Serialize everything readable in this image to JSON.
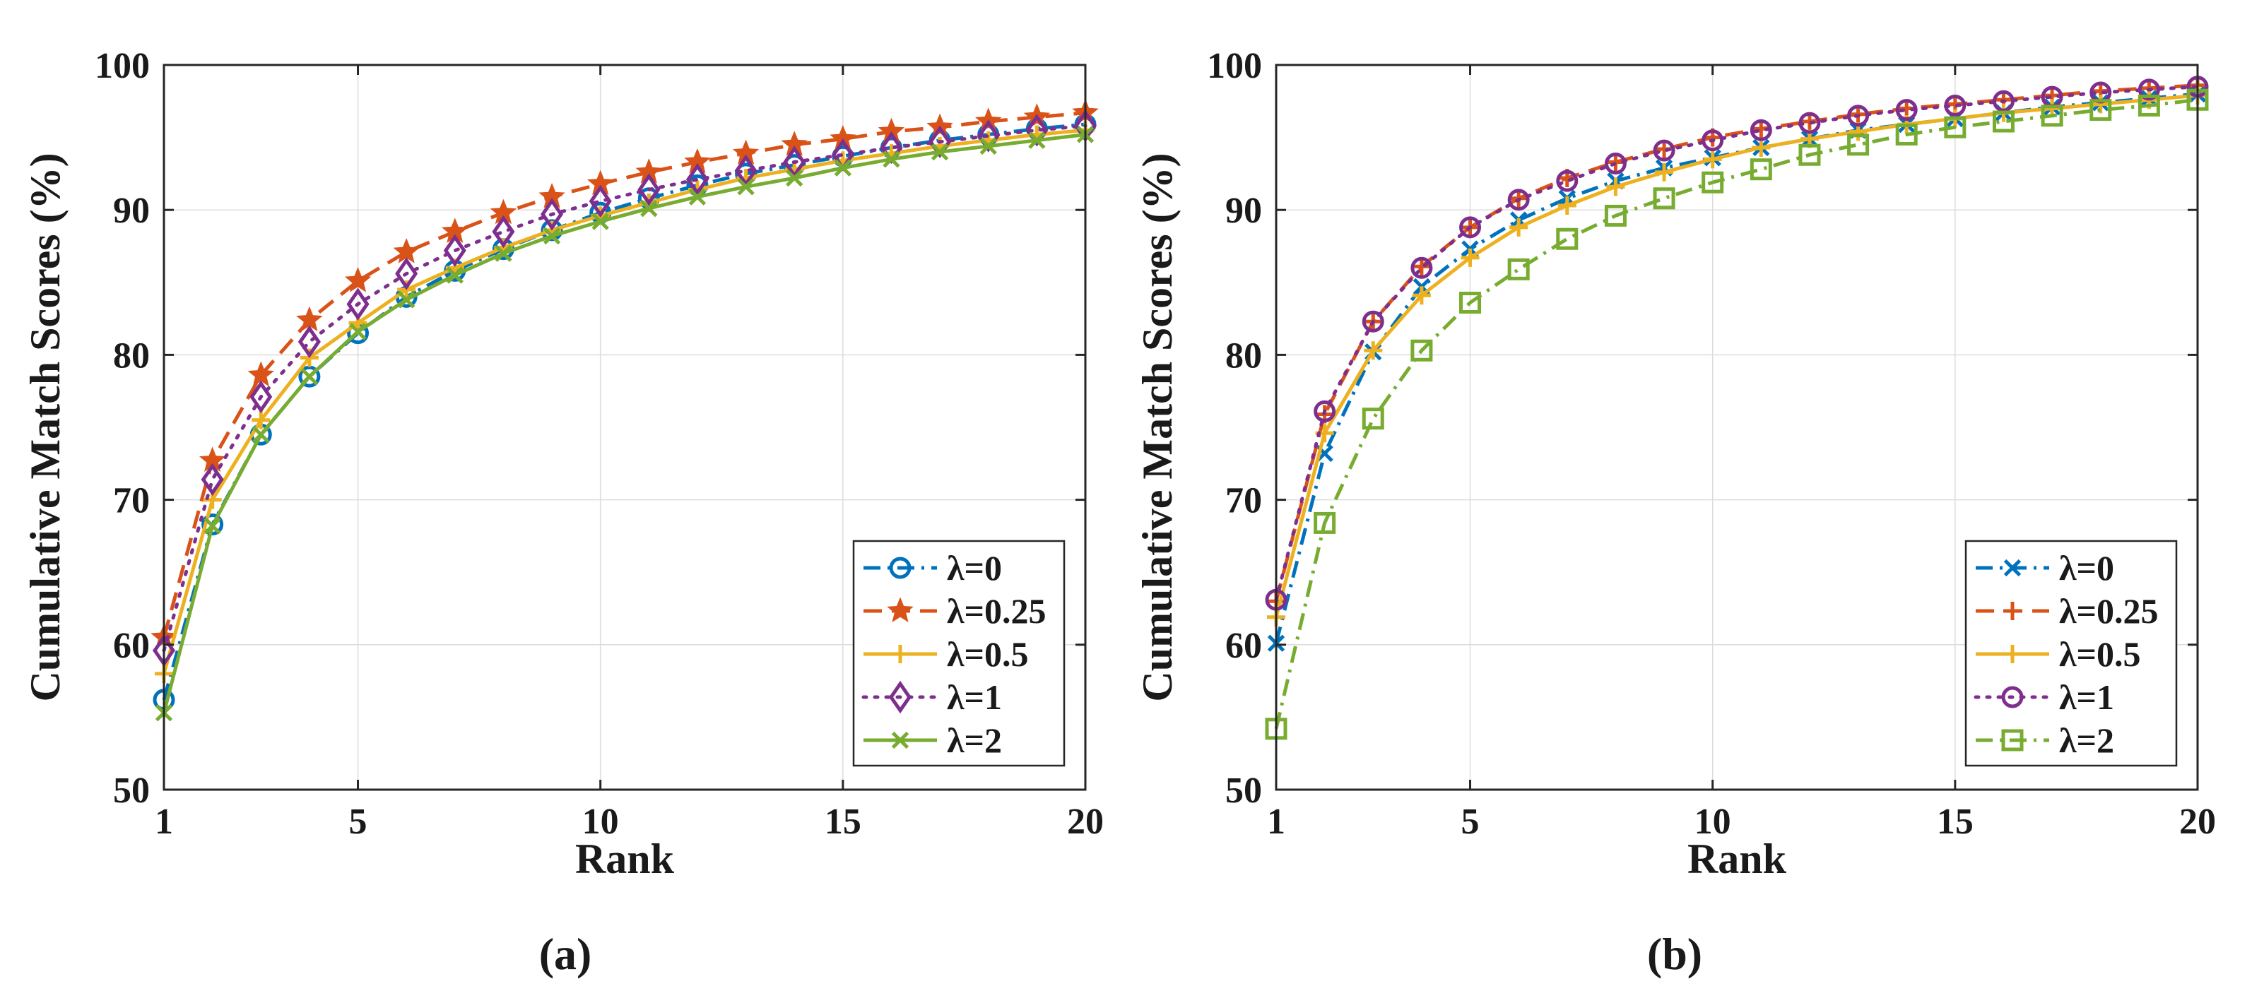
{
  "colors": {
    "blue": "#0072BD",
    "orange": "#D95319",
    "yellow": "#EDB120",
    "purple": "#7E2F8E",
    "green": "#77AC30",
    "axis": "#262626",
    "grid": "#dcdcdc"
  },
  "chart_data": [
    {
      "type": "line",
      "panel_label": "(a)",
      "panel_letter": "a",
      "title": "",
      "xlabel": "Rank",
      "ylabel": "Cumulative Match Scores (%)",
      "xlim": [
        1,
        20
      ],
      "ylim": [
        50,
        100
      ],
      "xticks": [
        "1",
        "5",
        "10",
        "15",
        "20"
      ],
      "yticks": [
        "50",
        "60",
        "70",
        "80",
        "90",
        "100"
      ],
      "grid": true,
      "legend_position": "bottom-right",
      "x": [
        1,
        2,
        3,
        4,
        5,
        6,
        7,
        8,
        9,
        10,
        11,
        12,
        13,
        14,
        15,
        16,
        17,
        18,
        19,
        20
      ],
      "series": [
        {
          "name": "λ=0",
          "color": "#0072BD",
          "dash": "dashdot",
          "marker": "circle",
          "values": [
            56.2,
            68.3,
            74.5,
            78.5,
            81.5,
            84.0,
            85.8,
            87.3,
            88.6,
            89.8,
            90.8,
            91.7,
            92.5,
            93.1,
            93.7,
            94.3,
            94.8,
            95.2,
            95.6,
            95.9
          ]
        },
        {
          "name": "λ=0.25",
          "color": "#D95319",
          "dash": "dashed",
          "marker": "star",
          "values": [
            60.5,
            72.7,
            78.6,
            82.4,
            85.1,
            87.1,
            88.5,
            89.8,
            90.9,
            91.8,
            92.6,
            93.3,
            93.9,
            94.5,
            94.9,
            95.4,
            95.7,
            96.1,
            96.4,
            96.7
          ]
        },
        {
          "name": "λ=0.5",
          "color": "#EDB120",
          "dash": "solid",
          "marker": "plus",
          "values": [
            58.0,
            70.0,
            75.5,
            79.8,
            82.2,
            84.5,
            86.0,
            87.4,
            88.6,
            89.6,
            90.5,
            91.4,
            92.2,
            92.8,
            93.4,
            93.9,
            94.4,
            94.8,
            95.2,
            95.5
          ]
        },
        {
          "name": "λ=1",
          "color": "#7E2F8E",
          "dash": "dotted",
          "marker": "diamond",
          "values": [
            59.6,
            71.4,
            77.1,
            80.9,
            83.5,
            85.6,
            87.2,
            88.5,
            89.7,
            90.6,
            91.4,
            92.1,
            92.7,
            93.3,
            93.8,
            94.3,
            94.7,
            95.1,
            95.5,
            95.8
          ]
        },
        {
          "name": "λ=2",
          "color": "#77AC30",
          "dash": "solid",
          "marker": "x",
          "values": [
            55.3,
            68.2,
            74.5,
            78.5,
            81.6,
            83.8,
            85.5,
            87.0,
            88.2,
            89.2,
            90.1,
            90.9,
            91.6,
            92.2,
            92.9,
            93.5,
            94.0,
            94.4,
            94.8,
            95.2
          ]
        }
      ]
    },
    {
      "type": "line",
      "panel_label": "(b)",
      "panel_letter": "b",
      "title": "",
      "xlabel": "Rank",
      "ylabel": "Cumulative Match Scores (%)",
      "xlim": [
        1,
        20
      ],
      "ylim": [
        50,
        100
      ],
      "xticks": [
        "1",
        "5",
        "10",
        "15",
        "20"
      ],
      "yticks": [
        "50",
        "60",
        "70",
        "80",
        "90",
        "100"
      ],
      "grid": true,
      "legend_position": "bottom-right",
      "x": [
        1,
        2,
        3,
        4,
        5,
        6,
        7,
        8,
        9,
        10,
        11,
        12,
        13,
        14,
        15,
        16,
        17,
        18,
        19,
        20
      ],
      "series": [
        {
          "name": "λ=0",
          "color": "#0072BD",
          "dash": "dashdot",
          "marker": "x",
          "values": [
            60.1,
            73.2,
            80.2,
            84.7,
            87.3,
            89.3,
            90.8,
            92.0,
            92.9,
            93.6,
            94.3,
            94.9,
            95.5,
            95.9,
            96.3,
            96.7,
            97.1,
            97.4,
            97.7,
            98.0
          ]
        },
        {
          "name": "λ=0.25",
          "color": "#D95319",
          "dash": "dashed",
          "marker": "plus",
          "values": [
            63.0,
            75.9,
            82.3,
            86.1,
            88.8,
            90.8,
            92.2,
            93.3,
            94.2,
            95.0,
            95.6,
            96.1,
            96.6,
            97.0,
            97.3,
            97.6,
            97.9,
            98.2,
            98.4,
            98.6
          ]
        },
        {
          "name": "λ=0.5",
          "color": "#EDB120",
          "dash": "solid",
          "marker": "plus",
          "values": [
            61.9,
            74.6,
            80.3,
            84.1,
            86.7,
            88.8,
            90.3,
            91.6,
            92.6,
            93.5,
            94.3,
            94.9,
            95.4,
            95.9,
            96.3,
            96.7,
            97.0,
            97.3,
            97.6,
            97.9
          ]
        },
        {
          "name": "λ=1",
          "color": "#7E2F8E",
          "dash": "dotted",
          "marker": "circle",
          "values": [
            63.1,
            76.1,
            82.3,
            86.0,
            88.8,
            90.7,
            92.0,
            93.2,
            94.1,
            94.8,
            95.5,
            96.0,
            96.5,
            96.9,
            97.2,
            97.5,
            97.8,
            98.1,
            98.3,
            98.5
          ]
        },
        {
          "name": "λ=2",
          "color": "#77AC30",
          "dash": "dashdot",
          "marker": "square",
          "values": [
            54.2,
            68.4,
            75.6,
            80.3,
            83.6,
            85.9,
            88.0,
            89.6,
            90.8,
            91.9,
            92.8,
            93.8,
            94.5,
            95.2,
            95.7,
            96.1,
            96.5,
            96.9,
            97.2,
            97.6
          ]
        }
      ]
    }
  ]
}
